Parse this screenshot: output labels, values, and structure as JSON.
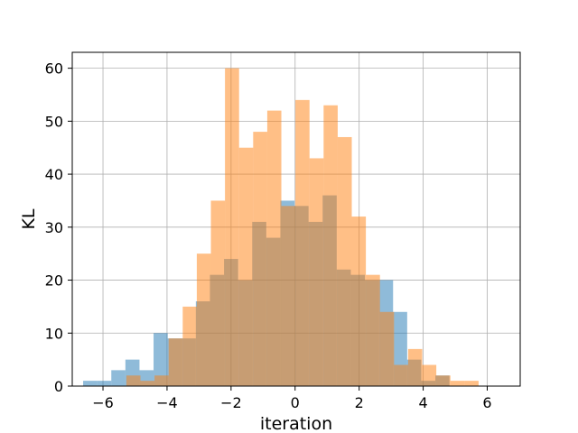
{
  "chart_data": {
    "type": "bar",
    "subtype": "overlaid-histogram",
    "title": "",
    "xlabel": "iteration",
    "ylabel": "KL",
    "xlim": [
      -6.96,
      7.03
    ],
    "ylim": [
      0,
      63
    ],
    "xticks": [
      -6,
      -4,
      -2,
      0,
      2,
      4,
      6
    ],
    "xtick_labels": [
      "−6",
      "−4",
      "−2",
      "0",
      "2",
      "4",
      "6"
    ],
    "yticks": [
      0,
      10,
      20,
      30,
      40,
      50,
      60
    ],
    "ytick_labels": [
      "0",
      "10",
      "20",
      "30",
      "40",
      "50",
      "60"
    ],
    "grid": true,
    "legend": "none",
    "series": [
      {
        "color": "#1f77b4",
        "alpha": 0.5,
        "bin_start": -6.62,
        "bin_width": 0.44,
        "counts": [
          1,
          1,
          3,
          5,
          3,
          10,
          9,
          9,
          16,
          21,
          24,
          20,
          31,
          28,
          35,
          34,
          31,
          36,
          22,
          21,
          20,
          20,
          14,
          5,
          1,
          2
        ]
      },
      {
        "color": "#ff7f0e",
        "alpha": 0.5,
        "bin_start": -5.27,
        "bin_width": 0.44,
        "counts": [
          2,
          1,
          2,
          9,
          15,
          25,
          35,
          60,
          45,
          48,
          52,
          34,
          54,
          43,
          53,
          47,
          32,
          21,
          14,
          4,
          7,
          4,
          2,
          1,
          1
        ]
      }
    ]
  }
}
